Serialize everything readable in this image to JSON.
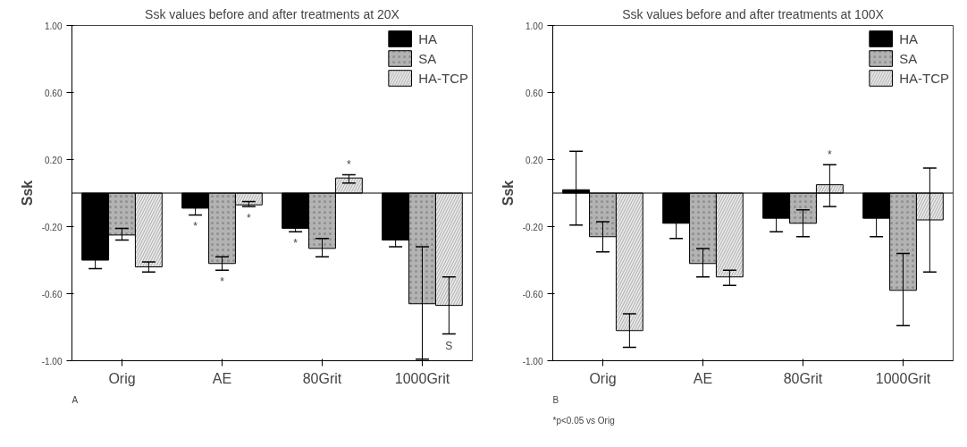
{
  "chart_data": [
    {
      "type": "bar",
      "title": "Ssk values before and after treatments at 20X",
      "ylabel": "Ssk",
      "categories": [
        "Orig",
        "AE",
        "80Grit",
        "1000Grit"
      ],
      "series": [
        {
          "name": "HA",
          "color": "#000000",
          "values": [
            -0.4,
            -0.09,
            -0.21,
            -0.28
          ],
          "errors": [
            [
              -0.45,
              -0.4
            ],
            [
              -0.13,
              -0.09
            ],
            [
              -0.23,
              -0.21
            ],
            [
              -0.32,
              -0.28
            ]
          ],
          "value_labels": [
            null,
            "*",
            "*",
            null
          ]
        },
        {
          "name": "SA",
          "color": "#b3b3b3",
          "values": [
            -0.25,
            -0.42,
            -0.33,
            -0.66
          ],
          "errors": [
            [
              -0.28,
              -0.21
            ],
            [
              -0.46,
              -0.38
            ],
            [
              -0.38,
              -0.27
            ],
            [
              -0.99,
              -0.32
            ]
          ],
          "value_labels": [
            null,
            "*",
            null,
            null
          ]
        },
        {
          "name": "HA-TCP",
          "color": "#e6e6e6",
          "values": [
            -0.44,
            -0.07,
            0.09,
            -0.67
          ],
          "errors": [
            [
              -0.47,
              -0.41
            ],
            [
              -0.08,
              -0.05
            ],
            [
              0.06,
              0.11
            ],
            [
              -0.84,
              -0.5
            ]
          ],
          "value_labels": [
            null,
            "*",
            "*",
            "S"
          ]
        }
      ],
      "ylim": [
        -1.0,
        1.0
      ],
      "yticks": [
        {
          "value": -1.0,
          "label": "-1.00"
        },
        {
          "value": -0.6,
          "label": "-0.60"
        },
        {
          "value": -0.2,
          "label": "-0.20"
        },
        {
          "value": 0.2,
          "label": "0.20"
        },
        {
          "value": 0.6,
          "label": "0.60"
        },
        {
          "value": 1.0,
          "label": "1.00"
        }
      ],
      "ref_lines": [
        {
          "axis": "y",
          "value": 0
        }
      ],
      "legend": "top right",
      "annotations": [
        "A"
      ]
    },
    {
      "type": "bar",
      "title": "Ssk values before and after treatments at 100X",
      "ylabel": "Ssk",
      "categories": [
        "Orig",
        "AE",
        "80Grit",
        "1000Grit"
      ],
      "series": [
        {
          "name": "HA",
          "color": "#000000",
          "values": [
            0.02,
            -0.18,
            -0.15,
            -0.15
          ],
          "errors": [
            [
              -0.19,
              0.25
            ],
            [
              -0.27,
              -0.18
            ],
            [
              -0.23,
              -0.15
            ],
            [
              -0.26,
              -0.15
            ]
          ]
        },
        {
          "name": "SA",
          "color": "#b3b3b3",
          "values": [
            -0.26,
            -0.42,
            -0.18,
            -0.58
          ],
          "errors": [
            [
              -0.35,
              -0.17
            ],
            [
              -0.5,
              -0.33
            ],
            [
              -0.26,
              -0.1
            ],
            [
              -0.79,
              -0.36
            ]
          ]
        },
        {
          "name": "HA-TCP",
          "color": "#e6e6e6",
          "values": [
            -0.82,
            -0.5,
            0.05,
            -0.16
          ],
          "errors": [
            [
              -0.92,
              -0.72
            ],
            [
              -0.55,
              -0.46
            ],
            [
              -0.08,
              0.17
            ],
            [
              -0.47,
              0.15
            ]
          ],
          "value_labels": [
            null,
            null,
            "*",
            null
          ]
        }
      ],
      "ylim": [
        -1.0,
        1.0
      ],
      "yticks": [
        {
          "value": -1.0,
          "label": "-1.00"
        },
        {
          "value": -0.6,
          "label": "-0.60"
        },
        {
          "value": -0.2,
          "label": "-0.20"
        },
        {
          "value": 0.2,
          "label": "0.20"
        },
        {
          "value": 0.6,
          "label": "0.60"
        },
        {
          "value": 1.0,
          "label": "1.00"
        }
      ],
      "ref_lines": [
        {
          "axis": "y",
          "value": 0
        }
      ],
      "legend": "top right",
      "annotations": [
        "B",
        "*p<0.05 vs Orig"
      ]
    }
  ]
}
